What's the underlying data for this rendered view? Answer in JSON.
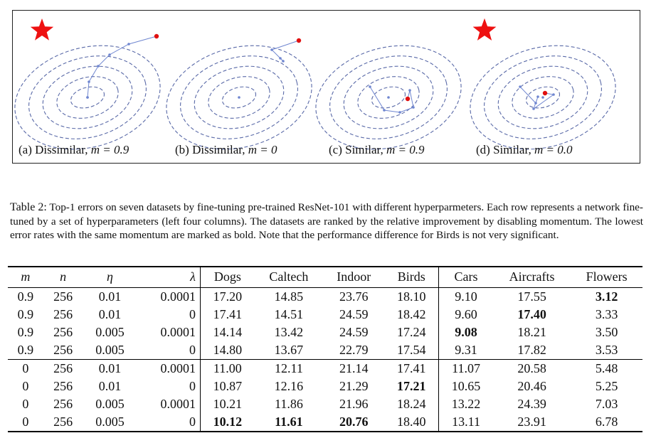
{
  "figure": {
    "panels": [
      {
        "label": "(a) Dissimilar, ",
        "math": "m = 0.9",
        "star": true
      },
      {
        "label": "(b) Dissimilar, ",
        "math": "m = 0",
        "star": false
      },
      {
        "label": "(c) Similar, ",
        "math": "m = 0.9",
        "star": true
      },
      {
        "label": "(d) Similar, ",
        "math": "m = 0.0",
        "star": true
      }
    ],
    "colors": {
      "ellipse": "#5a6aa8",
      "path": "#6f86d0",
      "start": "#e01010",
      "star": "#ee1111"
    }
  },
  "caption": {
    "prefix": "Table 2:",
    "text": "Top-1 errors on seven datasets by fine-tuning pre-trained ResNet-101 with different hyperparmeters. Each row represents a network fine-tuned by a set of hyperparameters (left four columns). The datasets are ranked by the relative improvement by disabling momentum. The lowest error rates with the same momentum are marked as bold. Note that the performance difference for Birds is not very significant."
  },
  "table": {
    "headers": [
      "m",
      "n",
      "η",
      "λ",
      "Dogs",
      "Caltech",
      "Indoor",
      "Birds",
      "Cars",
      "Aircrafts",
      "Flowers"
    ],
    "rows": [
      [
        "0.9",
        "256",
        "0.01",
        "0.0001",
        "17.20",
        "14.85",
        "23.76",
        "18.10",
        "9.10",
        "17.55",
        "3.12"
      ],
      [
        "0.9",
        "256",
        "0.01",
        "0",
        "17.41",
        "14.51",
        "24.59",
        "18.42",
        "9.60",
        "17.40",
        "3.33"
      ],
      [
        "0.9",
        "256",
        "0.005",
        "0.0001",
        "14.14",
        "13.42",
        "24.59",
        "17.24",
        "9.08",
        "18.21",
        "3.50"
      ],
      [
        "0.9",
        "256",
        "0.005",
        "0",
        "14.80",
        "13.67",
        "22.79",
        "17.54",
        "9.31",
        "17.82",
        "3.53"
      ],
      [
        "0",
        "256",
        "0.01",
        "0.0001",
        "11.00",
        "12.11",
        "21.14",
        "17.41",
        "11.07",
        "20.58",
        "5.48"
      ],
      [
        "0",
        "256",
        "0.01",
        "0",
        "10.87",
        "12.16",
        "21.29",
        "17.21",
        "10.65",
        "20.46",
        "5.25"
      ],
      [
        "0",
        "256",
        "0.005",
        "0.0001",
        "10.21",
        "11.86",
        "21.96",
        "18.24",
        "13.22",
        "24.39",
        "7.03"
      ],
      [
        "0",
        "256",
        "0.005",
        "0",
        "10.12",
        "11.61",
        "20.76",
        "18.40",
        "13.11",
        "23.91",
        "6.78"
      ]
    ],
    "bold": [
      [
        0,
        10
      ],
      [
        1,
        9
      ],
      [
        2,
        8
      ],
      [
        5,
        7
      ],
      [
        7,
        4
      ],
      [
        7,
        5
      ],
      [
        7,
        6
      ]
    ]
  }
}
